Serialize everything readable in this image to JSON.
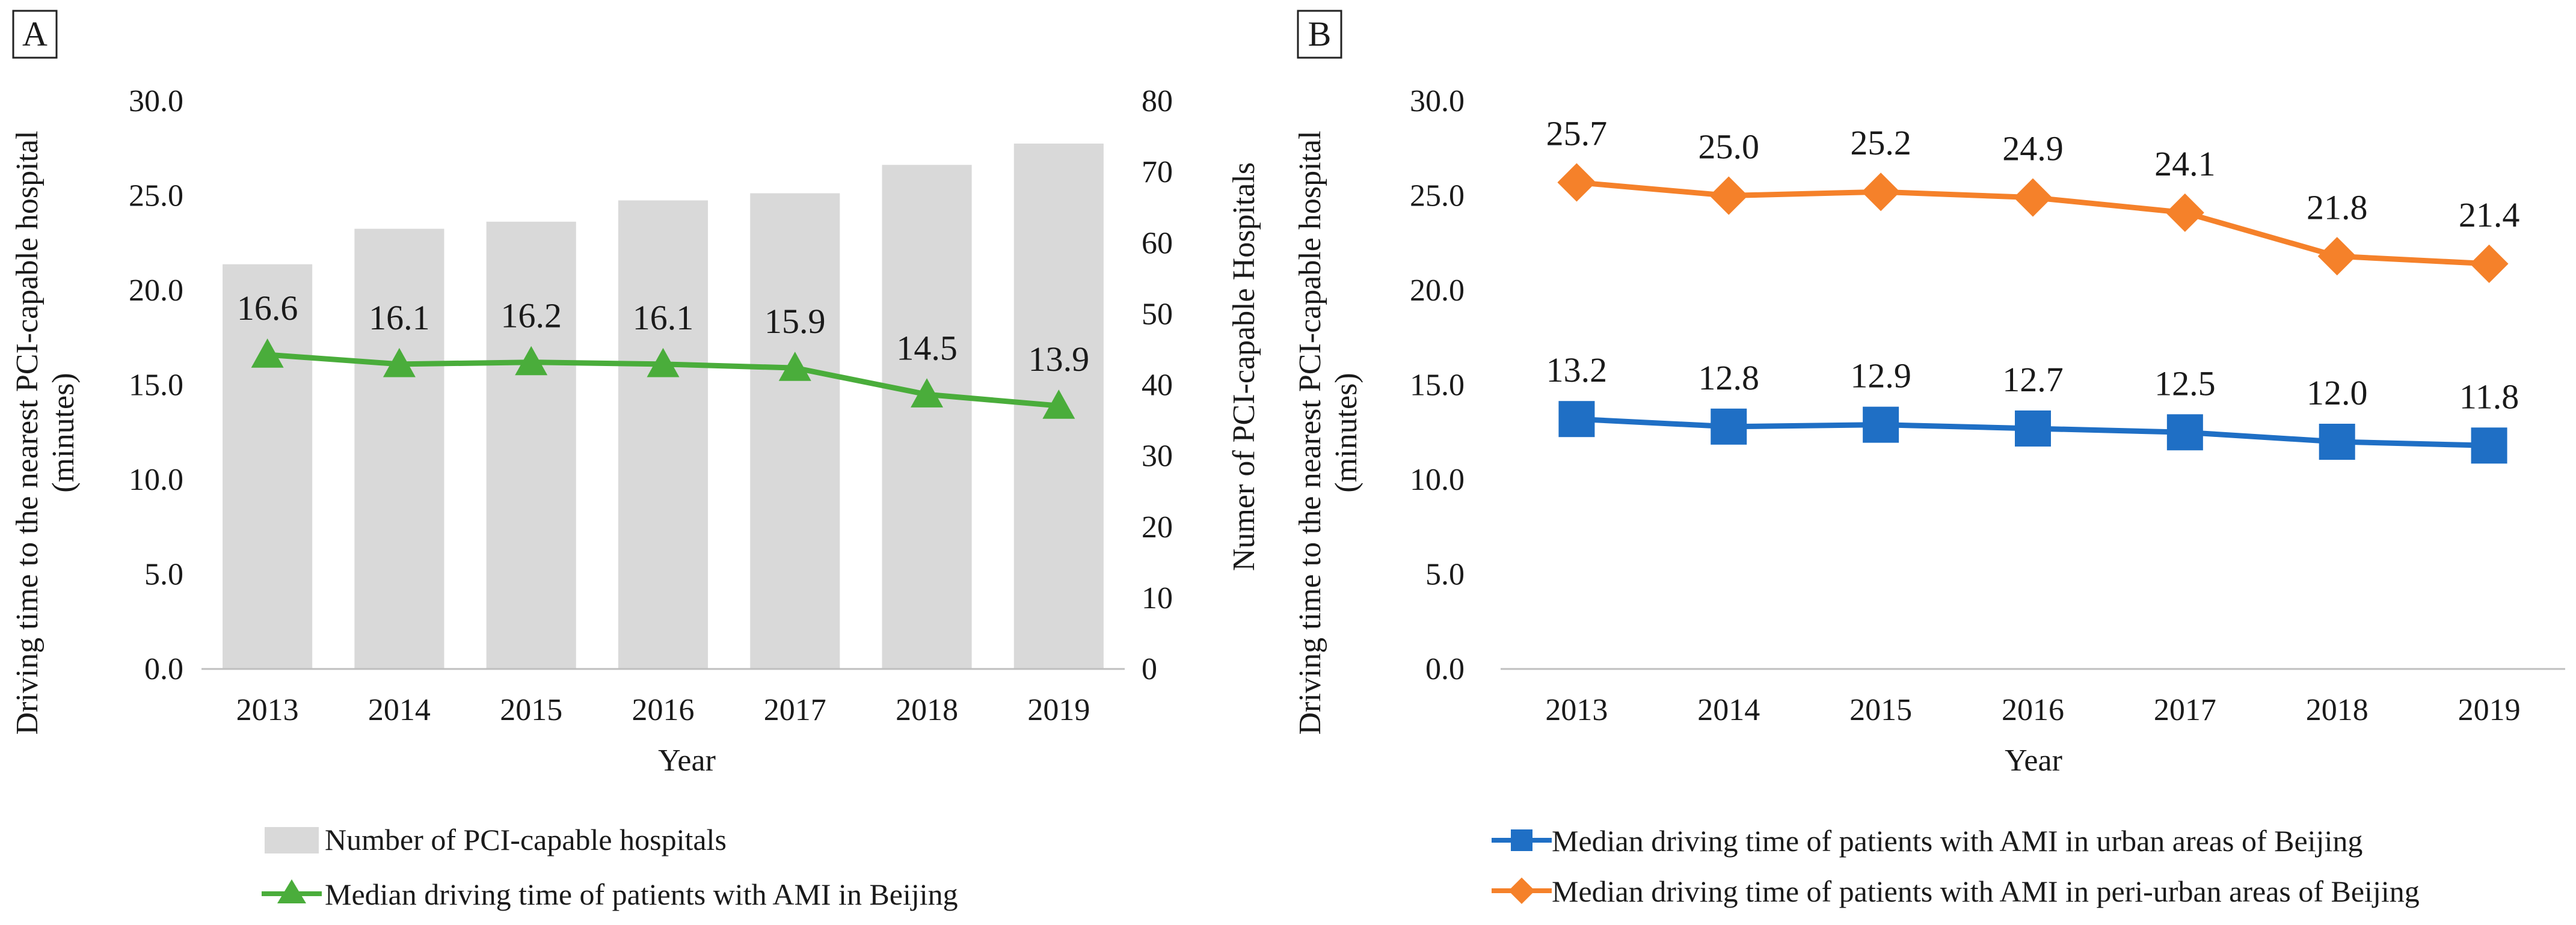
{
  "chart_data": [
    {
      "panel": "A",
      "type": "bar+line",
      "categories": [
        "2013",
        "2014",
        "2015",
        "2016",
        "2017",
        "2018",
        "2019"
      ],
      "xlabel": "Year",
      "ylabel": "Driving time to the nearest PCI-capable hospital (minutes)",
      "ylabel_lines": [
        "Driving time to the nearest PCI-capable hospital",
        "(minutes)"
      ],
      "ylim": [
        0,
        30
      ],
      "yticks": [
        "0.0",
        "5.0",
        "10.0",
        "15.0",
        "20.0",
        "25.0",
        "30.0"
      ],
      "y2label": "Numer of PCI-capable Hospitals",
      "y2lim": [
        0,
        80
      ],
      "y2ticks": [
        "0",
        "10",
        "20",
        "30",
        "40",
        "50",
        "60",
        "70",
        "80"
      ],
      "series": [
        {
          "name": "Number of PCI-capable hospitals",
          "type": "bar",
          "axis": "right",
          "color": "#d9d9d9",
          "values": [
            57,
            62,
            63,
            66,
            67,
            71,
            74
          ]
        },
        {
          "name": "Median driving time of patients with AMI in Beijing",
          "type": "line",
          "axis": "left",
          "marker": "triangle",
          "color": "#4aad3b",
          "values": [
            16.6,
            16.1,
            16.2,
            16.1,
            15.9,
            14.5,
            13.9
          ],
          "labels": [
            "16.6",
            "16.1",
            "16.2",
            "16.1",
            "15.9",
            "14.5",
            "13.9"
          ]
        }
      ],
      "legend": [
        {
          "label": "Number of PCI-capable hospitals",
          "symbol": "bar"
        },
        {
          "label": "Median driving time of patients with AMI in Beijing",
          "symbol": "triangle-line"
        }
      ]
    },
    {
      "panel": "B",
      "type": "line",
      "categories": [
        "2013",
        "2014",
        "2015",
        "2016",
        "2017",
        "2018",
        "2019"
      ],
      "xlabel": "Year",
      "ylabel": "Driving time to the nearest PCI-capable hospital (minutes)",
      "ylabel_lines": [
        "Driving time to the nearest PCI-capable hospital",
        "(minutes)"
      ],
      "ylim": [
        0,
        30
      ],
      "yticks": [
        "0.0",
        "5.0",
        "10.0",
        "15.0",
        "20.0",
        "25.0",
        "30.0"
      ],
      "series": [
        {
          "name": "Median driving time of patients with AMI in urban areas of Beijing",
          "marker": "square",
          "color": "#1f6fc5",
          "values": [
            13.2,
            12.8,
            12.9,
            12.7,
            12.5,
            12.0,
            11.8
          ],
          "labels": [
            "13.2",
            "12.8",
            "12.9",
            "12.7",
            "12.5",
            "12.0",
            "11.8"
          ]
        },
        {
          "name": "Median driving time of patients with AMI in peri-urban areas of Beijing",
          "marker": "diamond",
          "color": "#f5812a",
          "values": [
            25.7,
            25.0,
            25.2,
            24.9,
            24.1,
            21.8,
            21.4
          ],
          "labels": [
            "25.7",
            "25.0",
            "25.2",
            "24.9",
            "24.1",
            "21.8",
            "21.4"
          ]
        }
      ],
      "legend": [
        {
          "label": "Median driving time of patients with AMI in urban areas of Beijing",
          "symbol": "square-line"
        },
        {
          "label": "Median driving time of patients with AMI in peri-urban areas of Beijing",
          "symbol": "diamond-line"
        }
      ]
    }
  ]
}
